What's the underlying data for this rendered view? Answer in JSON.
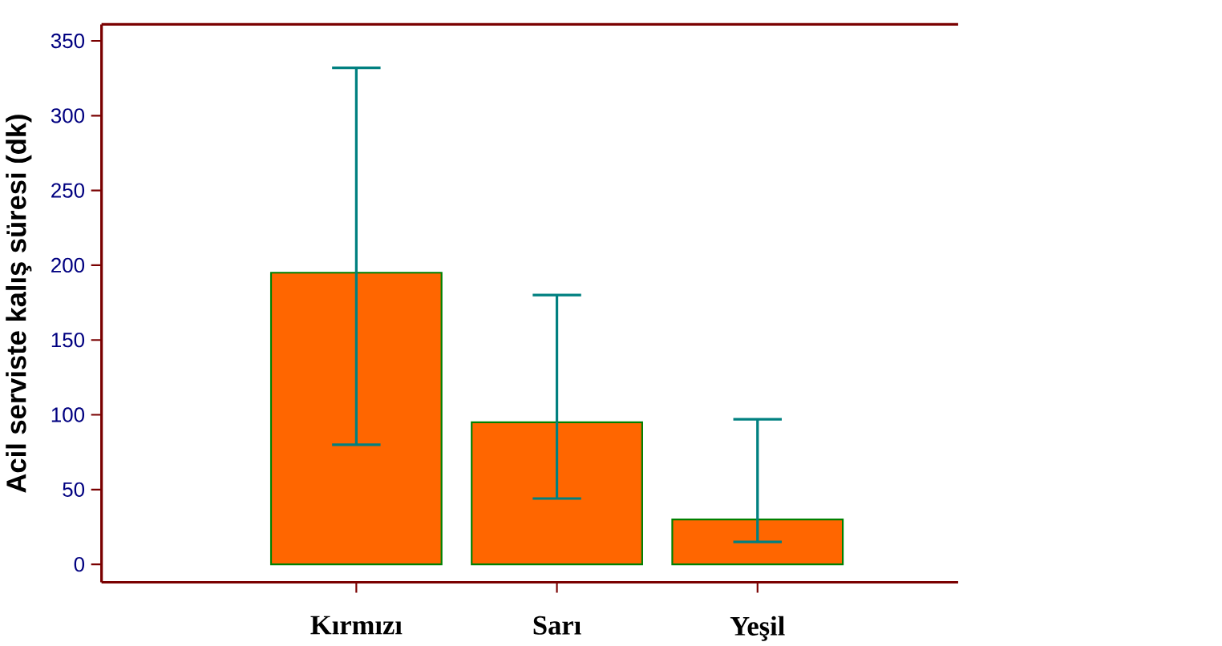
{
  "chart_data": {
    "type": "bar",
    "ylabel": "Acil serviste kalış süresi (dk)",
    "categories": [
      "Kırmızı",
      "Sarı",
      "Yeşil"
    ],
    "values": [
      195,
      95,
      30
    ],
    "errors": [
      [
        80,
        332
      ],
      [
        44,
        180
      ],
      [
        15,
        97
      ]
    ],
    "color": "#ff6600",
    "ylim": [
      -12,
      361
    ],
    "yticks": [
      0,
      50,
      100,
      150,
      200,
      250,
      300,
      350
    ],
    "grid": false
  }
}
